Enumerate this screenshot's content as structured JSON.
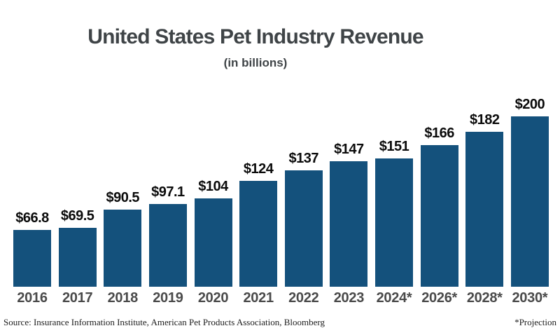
{
  "title": "United States Pet Industry Revenue",
  "subtitle": "(in billions)",
  "footer": {
    "source": "Source: Insurance Information Institute, American Pet Products Association, Bloomberg",
    "note": "*Projection"
  },
  "colors": {
    "bar": "#14517c",
    "title_text": "#3f4447",
    "year_text": "#4a4a4a",
    "value_text": "#0b0b0b"
  },
  "chart_data": {
    "type": "bar",
    "title": "United States Pet Industry Revenue",
    "subtitle": "(in billions)",
    "categories": [
      "2016",
      "2017",
      "2018",
      "2019",
      "2020",
      "2021",
      "2022",
      "2023",
      "2024*",
      "2026*",
      "2028*",
      "2030*"
    ],
    "values": [
      66.8,
      69.5,
      90.5,
      97.1,
      104,
      124,
      137,
      147,
      151,
      166,
      182,
      200
    ],
    "value_labels": [
      "$66.8",
      "$69.5",
      "$90.5",
      "$97.1",
      "$104",
      "$124",
      "$137",
      "$147",
      "$151",
      "$166",
      "$182",
      "$200"
    ],
    "ylim": [
      0,
      200
    ],
    "grid": false,
    "legend": null,
    "bar_color": "#14517c",
    "annotation": "*Projection"
  }
}
